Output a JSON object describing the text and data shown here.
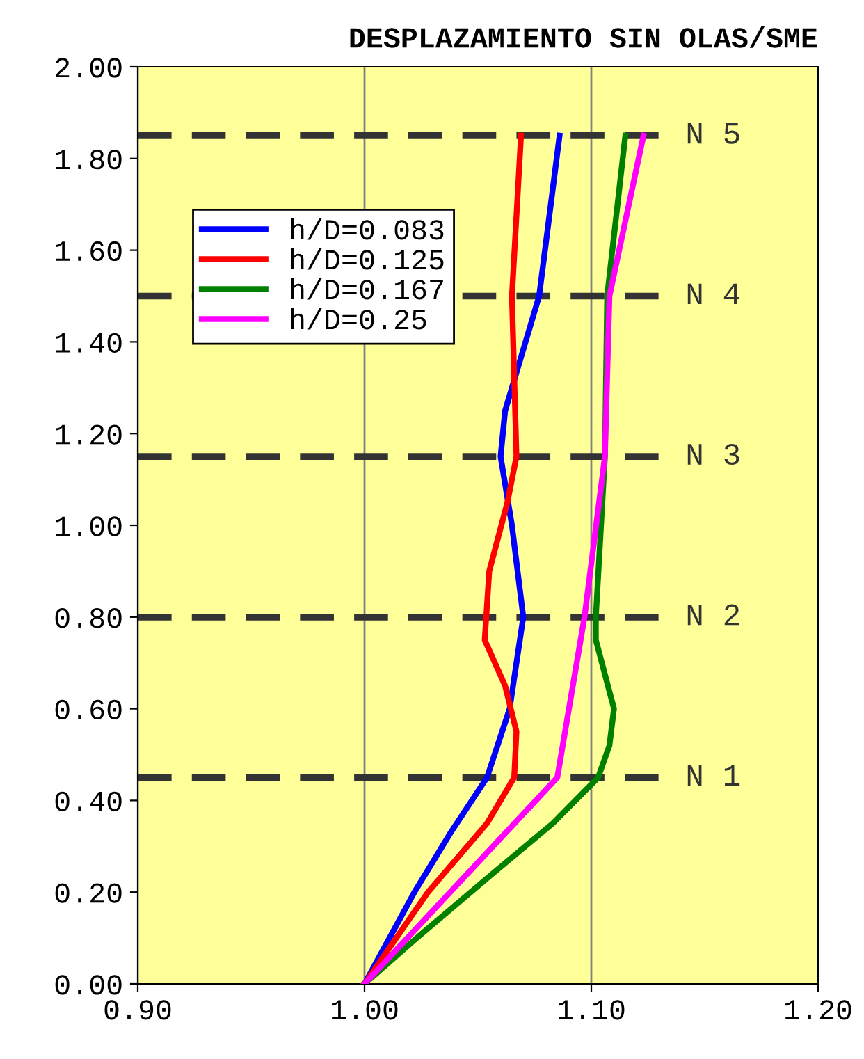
{
  "chart_data": {
    "type": "line",
    "title": "DESPLAZAMIENTO SIN OLAS/SME",
    "xlim": [
      0.9,
      1.2
    ],
    "xticks": [
      {
        "value": 0.9,
        "label": "0.90"
      },
      {
        "value": 1.0,
        "label": "1.00"
      },
      {
        "value": 1.1,
        "label": "1.10"
      },
      {
        "value": 1.2,
        "label": "1.20"
      }
    ],
    "ylim": [
      0,
      2
    ],
    "yticks": [
      {
        "value": 0,
        "label": "0.00"
      },
      {
        "value": 0.2,
        "label": "0.20"
      },
      {
        "value": 0.4,
        "label": "0.40"
      },
      {
        "value": 0.6,
        "label": "0.60"
      },
      {
        "value": 0.8,
        "label": "0.80"
      },
      {
        "value": 1.0,
        "label": "1.00"
      },
      {
        "value": 1.2,
        "label": "1.20"
      },
      {
        "value": 1.4,
        "label": "1.40"
      },
      {
        "value": 1.6,
        "label": "1.60"
      },
      {
        "value": 1.8,
        "label": "1.80"
      },
      {
        "value": 2.0,
        "label": "2.00"
      }
    ],
    "grid": "x",
    "legend": "top left",
    "marker": "none",
    "line_style": "solid",
    "series": [
      {
        "name": "h/D=0.083",
        "color": "#0000ff",
        "x": [
          1.0,
          1.022,
          1.038,
          1.054,
          1.064,
          1.07,
          1.065,
          1.06,
          1.062,
          1.077,
          1.086
        ],
        "values": [
          0,
          0.2,
          0.33,
          0.45,
          0.6,
          0.8,
          1.0,
          1.15,
          1.25,
          1.5,
          1.85
        ]
      },
      {
        "name": "h/D=0.125",
        "color": "#ff0000",
        "x": [
          1.0,
          1.028,
          1.054,
          1.066,
          1.067,
          1.062,
          1.053,
          1.055,
          1.063,
          1.067,
          1.065,
          1.069
        ],
        "values": [
          0,
          0.2,
          0.35,
          0.45,
          0.55,
          0.65,
          0.75,
          0.9,
          1.05,
          1.15,
          1.5,
          1.85
        ]
      },
      {
        "name": "h/D=0.167",
        "color": "#008000",
        "x": [
          1.0,
          1.023,
          1.054,
          1.083,
          1.103,
          1.108,
          1.11,
          1.102,
          1.102,
          1.106,
          1.107,
          1.115
        ],
        "values": [
          0,
          0.1,
          0.23,
          0.35,
          0.45,
          0.52,
          0.6,
          0.75,
          0.8,
          1.15,
          1.5,
          1.85
        ]
      },
      {
        "name": "h/D=0.25",
        "color": "#ff00ff",
        "x": [
          1.0,
          1.085,
          1.097,
          1.106,
          1.108,
          1.123
        ],
        "values": [
          0,
          0.45,
          0.8,
          1.15,
          1.5,
          1.85
        ]
      }
    ],
    "ref_lines": [
      {
        "axis": "y",
        "value": 0.45,
        "label": "N 1",
        "color": "#333333",
        "line_style": "dashed"
      },
      {
        "axis": "y",
        "value": 0.8,
        "label": "N 2",
        "color": "#333333",
        "line_style": "dashed"
      },
      {
        "axis": "y",
        "value": 1.15,
        "label": "N 3",
        "color": "#333333",
        "line_style": "dashed"
      },
      {
        "axis": "y",
        "value": 1.5,
        "label": "N 4",
        "color": "#333333",
        "line_style": "dashed"
      },
      {
        "axis": "y",
        "value": 1.85,
        "label": "N 5",
        "color": "#333333",
        "line_style": "dashed"
      }
    ]
  }
}
